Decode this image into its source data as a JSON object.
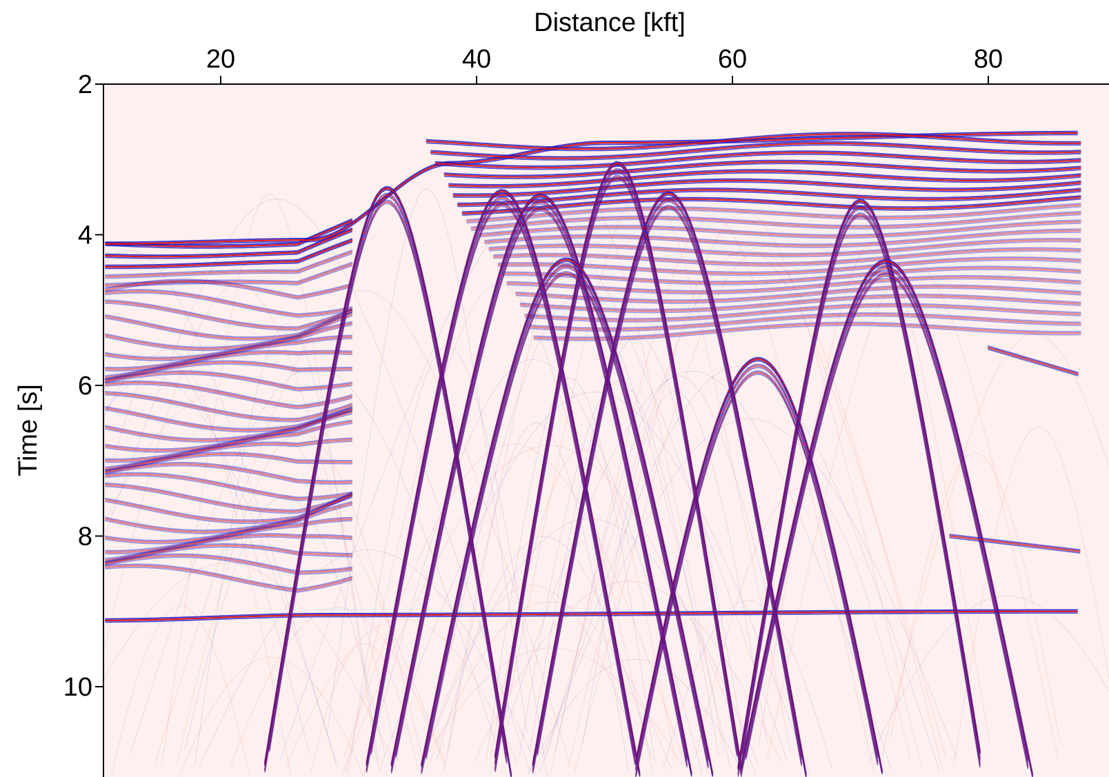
{
  "chart_data": {
    "type": "heatmap",
    "title": "",
    "xlabel": "Distance [kft]",
    "ylabel": "Time [s]",
    "xlim": [
      11,
      87.2
    ],
    "ylim": [
      11,
      2
    ],
    "x_axis_position": "top",
    "y_axis_inverted": true,
    "xticks": [
      20,
      40,
      60,
      80
    ],
    "xtick_labels": [
      "20",
      "40",
      "60",
      "80"
    ],
    "yticks": [
      2,
      4,
      6,
      8,
      10
    ],
    "ytick_labels": [
      "2",
      "4",
      "6",
      "8",
      "10"
    ],
    "grid": false,
    "legend": "none",
    "colormap": {
      "negative": "#1a1acc",
      "zero": "#fdf0ee",
      "positive": "#dd1111"
    },
    "events": {
      "flat": [
        {
          "name": "",
          "x": [
            11,
            27,
            38,
            50,
            87.2
          ],
          "t": [
            4.12,
            4.07,
            3.05,
            2.78,
            2.65
          ]
        },
        {
          "name": "",
          "x": [
            11,
            28,
            87.2
          ],
          "t": [
            9.12,
            9.05,
            9.0
          ]
        }
      ],
      "hyperbola_apexes": [
        {
          "x": 33,
          "t": 3.38
        },
        {
          "x": 42,
          "t": 3.42
        },
        {
          "x": 45,
          "t": 3.48
        },
        {
          "x": 51,
          "t": 3.05
        },
        {
          "x": 55,
          "t": 3.45
        },
        {
          "x": 47,
          "t": 4.33
        },
        {
          "x": 70,
          "t": 3.55
        },
        {
          "x": 62,
          "t": 5.65
        },
        {
          "x": 72,
          "t": 4.35
        }
      ]
    }
  }
}
